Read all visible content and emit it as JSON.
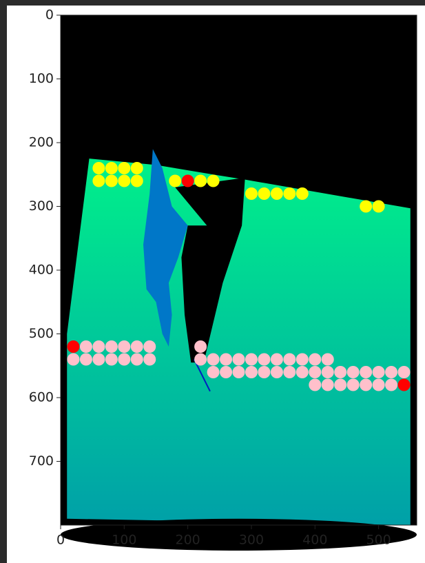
{
  "chart_data": {
    "type": "scatter",
    "xlim": [
      0,
      560
    ],
    "ylim": [
      800,
      0
    ],
    "xticks": [
      0,
      100,
      200,
      300,
      400,
      500
    ],
    "yticks": [
      0,
      100,
      200,
      300,
      400,
      500,
      600,
      700
    ],
    "series": [
      {
        "color": "#ffff00",
        "x": [
          60,
          80,
          100,
          120,
          60,
          80,
          100,
          120,
          180,
          220,
          240,
          300,
          320,
          340,
          360,
          380,
          480,
          500
        ],
        "y": [
          240,
          240,
          240,
          240,
          260,
          260,
          260,
          260,
          260,
          260,
          260,
          280,
          280,
          280,
          280,
          280,
          300,
          300
        ]
      },
      {
        "color": "#ffc0cb",
        "x": [
          40,
          60,
          80,
          100,
          120,
          140,
          220,
          20,
          40,
          60,
          80,
          100,
          120,
          140,
          220,
          240,
          260,
          280,
          300,
          320,
          340,
          360,
          380,
          400,
          420,
          240,
          260,
          280,
          300,
          320,
          340,
          360,
          380,
          400,
          420,
          440,
          460,
          480,
          500,
          520,
          540,
          400,
          420,
          440,
          460,
          480,
          500,
          520
        ],
        "y": [
          520,
          520,
          520,
          520,
          520,
          520,
          520,
          540,
          540,
          540,
          540,
          540,
          540,
          540,
          540,
          540,
          540,
          540,
          540,
          540,
          540,
          540,
          540,
          540,
          540,
          560,
          560,
          560,
          560,
          560,
          560,
          560,
          560,
          560,
          560,
          560,
          560,
          560,
          560,
          560,
          560,
          580,
          580,
          580,
          580,
          580,
          580,
          580
        ]
      },
      {
        "color": "#ff0000",
        "x": [
          200,
          20,
          540
        ],
        "y": [
          260,
          520,
          580
        ]
      }
    ]
  }
}
